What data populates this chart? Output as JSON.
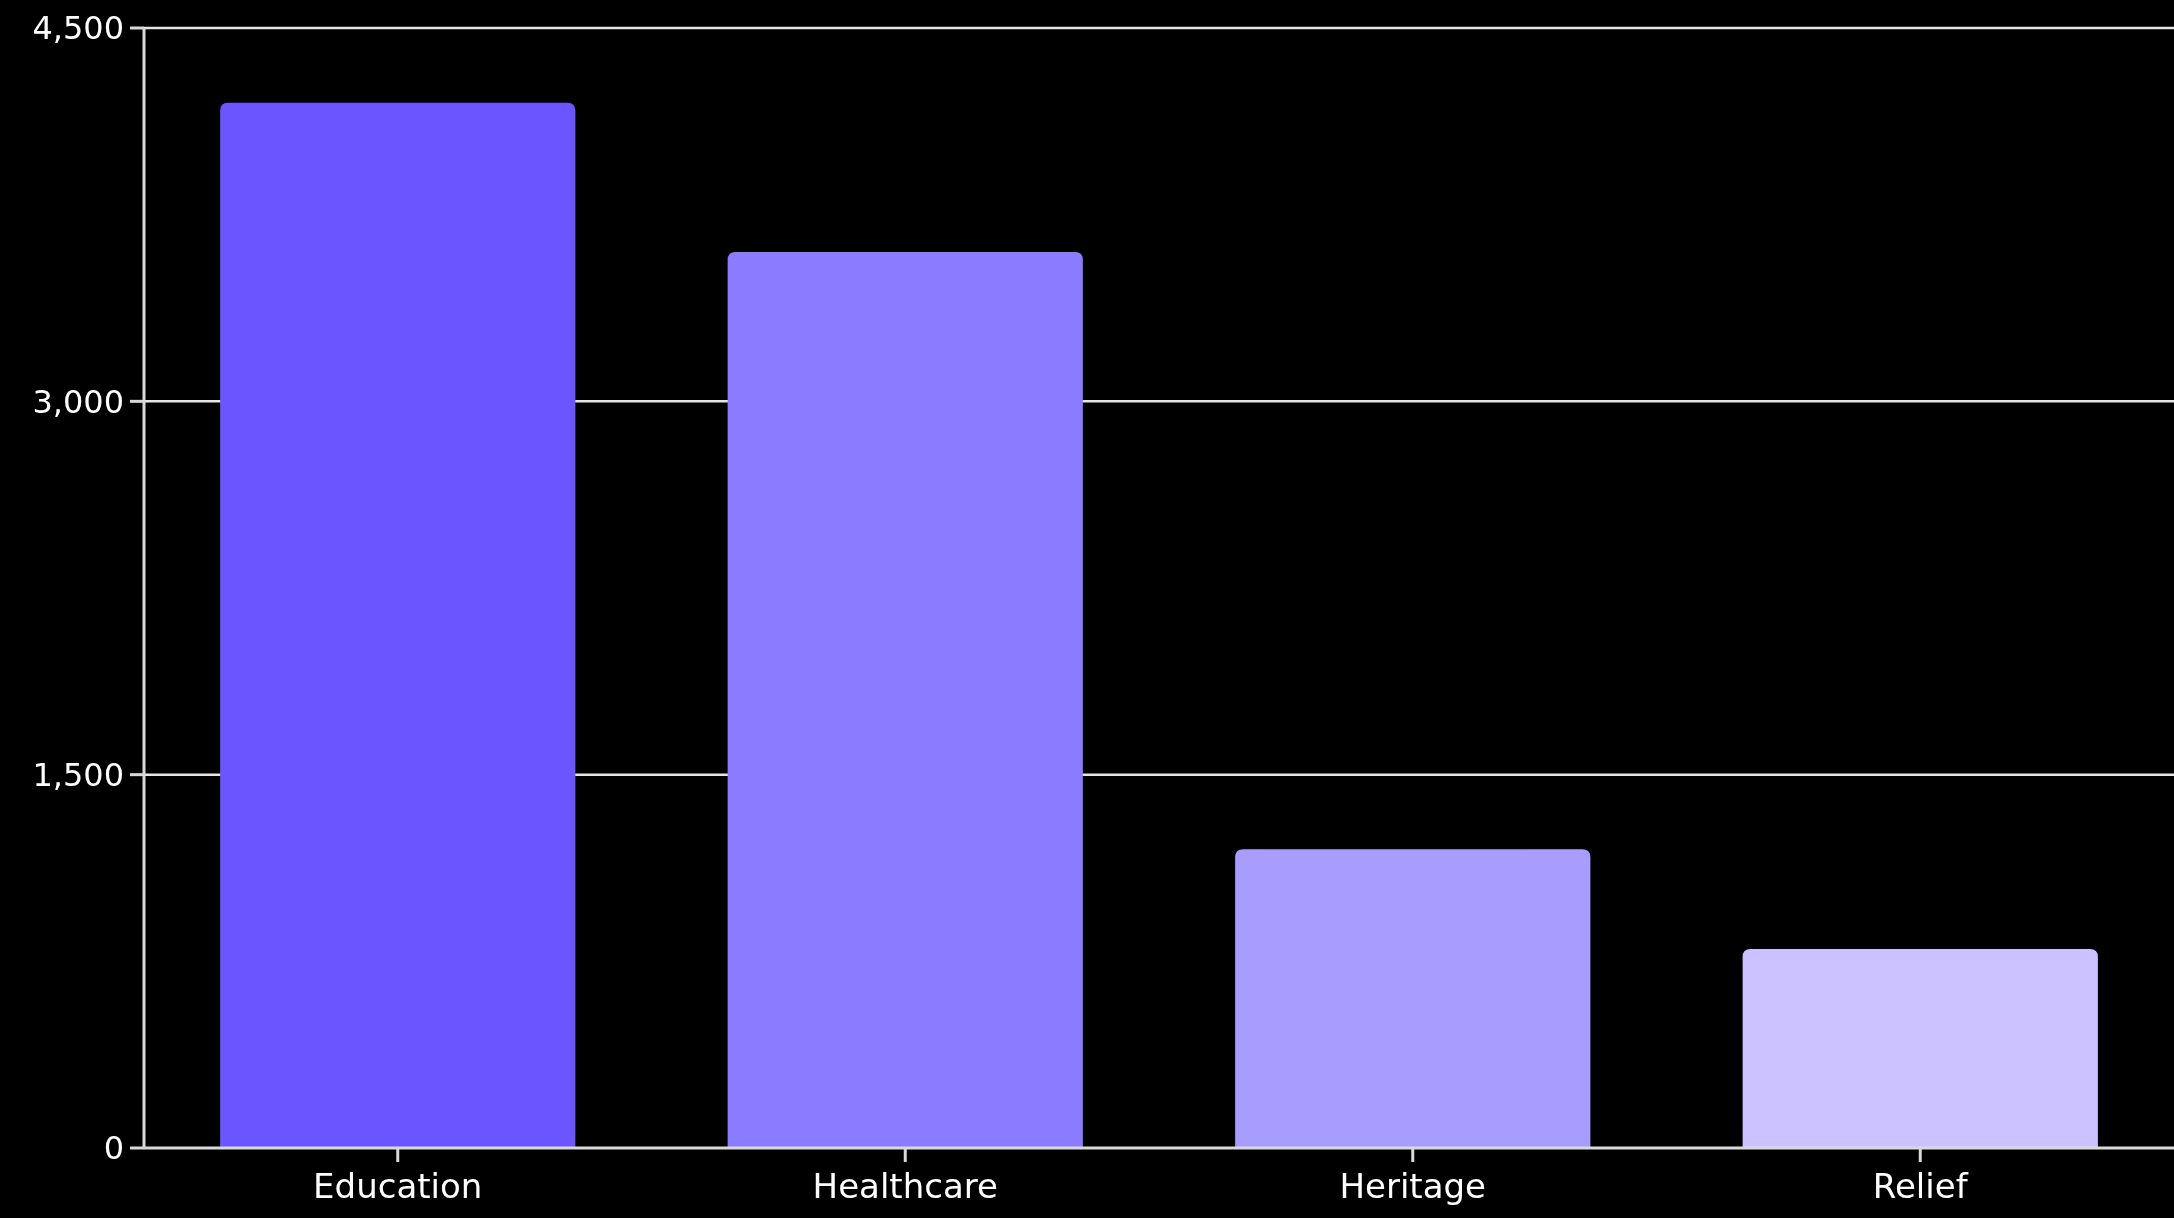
{
  "chart_data": {
    "type": "bar",
    "categories": [
      "Education",
      "Healthcare",
      "Heritage",
      "Relief"
    ],
    "values": [
      4200,
      3600,
      1200,
      800
    ],
    "colors": [
      "#6a55ff",
      "#8a7bff",
      "#a99cff",
      "#cbc2ff"
    ],
    "ylim": [
      0,
      4500
    ],
    "yticks": [
      0,
      {
        "value": 1500,
        "label": "1,500"
      },
      {
        "value": 3000,
        "label": "3,000"
      },
      {
        "value": 4500,
        "label": "4,500"
      }
    ],
    "grid": "y"
  }
}
